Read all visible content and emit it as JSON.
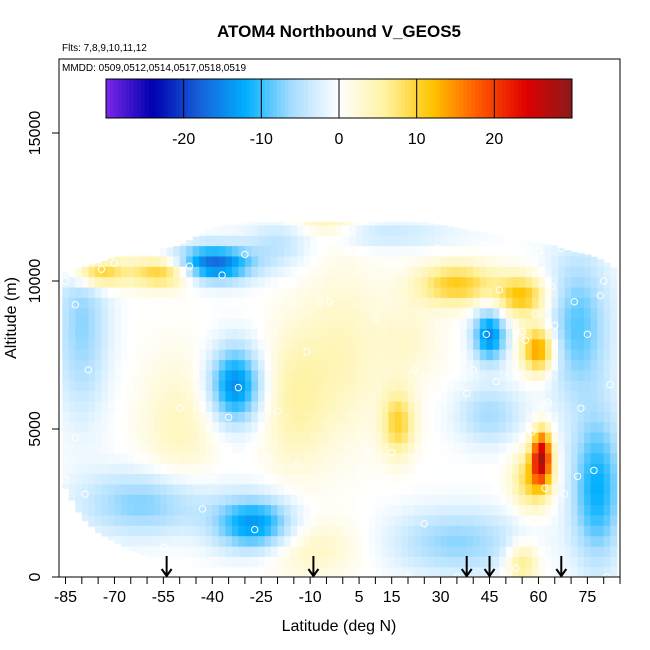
{
  "chart_data": {
    "type": "heatmap",
    "title": "ATOM4 Northbound V_GEOS5",
    "subtitle_flights": "Flts: 7,8,9,10,11,12",
    "subtitle_dates": "MMDD: 0509,0512,0514,0517,0518,0519",
    "xlabel": "Latitude (deg N)",
    "ylabel": "Altitude (m)",
    "xlim": [
      -87,
      85
    ],
    "ylim": [
      0,
      17500
    ],
    "x_tick_labels": [
      "-85",
      "-70",
      "-55",
      "-40",
      "-25",
      "-10",
      "5",
      "15",
      "30",
      "45",
      "60",
      "75"
    ],
    "x_tick_values": [
      -85,
      -70,
      -55,
      -40,
      -25,
      -10,
      5,
      15,
      30,
      45,
      60,
      75
    ],
    "x_minor_ticks": [
      -80,
      -75,
      -65,
      -60,
      -50,
      -45,
      -35,
      -30,
      -20,
      -15,
      -5,
      0,
      10,
      20,
      25,
      35,
      40,
      50,
      55,
      65,
      70,
      80,
      85
    ],
    "y_tick_labels": [
      "0",
      "5000",
      "10000",
      "15000"
    ],
    "y_tick_values": [
      0,
      5000,
      10000,
      15000
    ],
    "colorbar": {
      "min": -30,
      "max": 30,
      "tick_labels": [
        "-20",
        "-10",
        "0",
        "10",
        "20"
      ],
      "tick_values": [
        -20,
        -10,
        0,
        10,
        20
      ],
      "colors": [
        "#7a28e8",
        "#0000b0",
        "#1760d8",
        "#00b0ff",
        "#a8ddff",
        "#ffffff",
        "#fff2a0",
        "#ffc400",
        "#ff5a00",
        "#e00000",
        "#8b1a1a"
      ]
    },
    "arrow_latitudes": [
      -54,
      -9,
      38,
      45,
      67
    ],
    "observation_points": [
      [
        -85,
        3300
      ],
      [
        -82,
        4700
      ],
      [
        -79,
        2800
      ],
      [
        -78,
        7000
      ],
      [
        -82,
        9200
      ],
      [
        -85,
        10000
      ],
      [
        -79,
        1300
      ],
      [
        -74,
        10400
      ],
      [
        -70,
        10600
      ],
      [
        -62,
        11000
      ],
      [
        -55,
        1000
      ],
      [
        -52,
        8600
      ],
      [
        -50,
        5700
      ],
      [
        -47,
        10500
      ],
      [
        -43,
        2300
      ],
      [
        -40,
        3300
      ],
      [
        -37,
        10200
      ],
      [
        -35,
        5400
      ],
      [
        -32,
        6400
      ],
      [
        -30,
        10900
      ],
      [
        -27,
        1600
      ],
      [
        -23,
        4000
      ],
      [
        -20,
        5600
      ],
      [
        -18,
        9700
      ],
      [
        -14,
        3800
      ],
      [
        -11,
        7600
      ],
      [
        -7,
        9300
      ],
      [
        -4,
        9300
      ],
      [
        -4,
        11300
      ],
      [
        -1,
        2700
      ],
      [
        4,
        0
      ],
      [
        5,
        3000
      ],
      [
        8,
        4200
      ],
      [
        10,
        8700
      ],
      [
        12,
        0
      ],
      [
        15,
        4200
      ],
      [
        17,
        10500
      ],
      [
        20,
        0
      ],
      [
        22,
        7000
      ],
      [
        25,
        1800
      ],
      [
        26,
        4200
      ],
      [
        29,
        11100
      ],
      [
        30,
        8500
      ],
      [
        31,
        3100
      ],
      [
        35,
        0
      ],
      [
        38,
        6200
      ],
      [
        40,
        7000
      ],
      [
        43,
        11200
      ],
      [
        44,
        8200
      ],
      [
        45,
        3300
      ],
      [
        46,
        2900
      ],
      [
        47,
        6600
      ],
      [
        48,
        9700
      ],
      [
        50,
        0
      ],
      [
        52,
        11500
      ],
      [
        53,
        300
      ],
      [
        55,
        8300
      ],
      [
        56,
        8000
      ],
      [
        58,
        4900
      ],
      [
        59,
        8900
      ],
      [
        60,
        11000
      ],
      [
        62,
        1900
      ],
      [
        62,
        3000
      ],
      [
        63,
        5900
      ],
      [
        64,
        9800
      ],
      [
        65,
        8500
      ],
      [
        67,
        11100
      ],
      [
        68,
        2800
      ],
      [
        71,
        9300
      ],
      [
        72,
        3400
      ],
      [
        73,
        5700
      ],
      [
        75,
        8200
      ],
      [
        76,
        11100
      ],
      [
        77,
        3600
      ],
      [
        79,
        9500
      ],
      [
        80,
        10000
      ],
      [
        81,
        0
      ],
      [
        82,
        6500
      ]
    ],
    "field_data": {
      "columns_lat": [
        -85,
        -80,
        -75,
        -70,
        -65,
        -60,
        -55,
        -50,
        -45,
        -40,
        -35,
        -30,
        -25,
        -20,
        -15,
        -10,
        -5,
        0,
        5,
        10,
        15,
        20,
        25,
        30,
        35,
        40,
        45,
        50,
        55,
        60,
        65,
        70,
        75,
        80,
        85
      ],
      "top_altitude": [
        10300,
        10500,
        10600,
        10800,
        10900,
        11000,
        11100,
        11200,
        11500,
        11800,
        11900,
        12000,
        12000,
        12000,
        12000,
        12000,
        12000,
        12000,
        12000,
        12000,
        12000,
        12000,
        12000,
        11900,
        11800,
        11700,
        11600,
        11500,
        11400,
        11300,
        11200,
        11000,
        10900,
        10700,
        10300
      ],
      "bottom_altitude": [
        3000,
        2000,
        1500,
        1200,
        900,
        700,
        300,
        0,
        0,
        0,
        0,
        0,
        0,
        0,
        0,
        0,
        0,
        0,
        0,
        0,
        0,
        0,
        0,
        0,
        0,
        0,
        0,
        0,
        0,
        0,
        0,
        0,
        0,
        0,
        0
      ]
    }
  }
}
